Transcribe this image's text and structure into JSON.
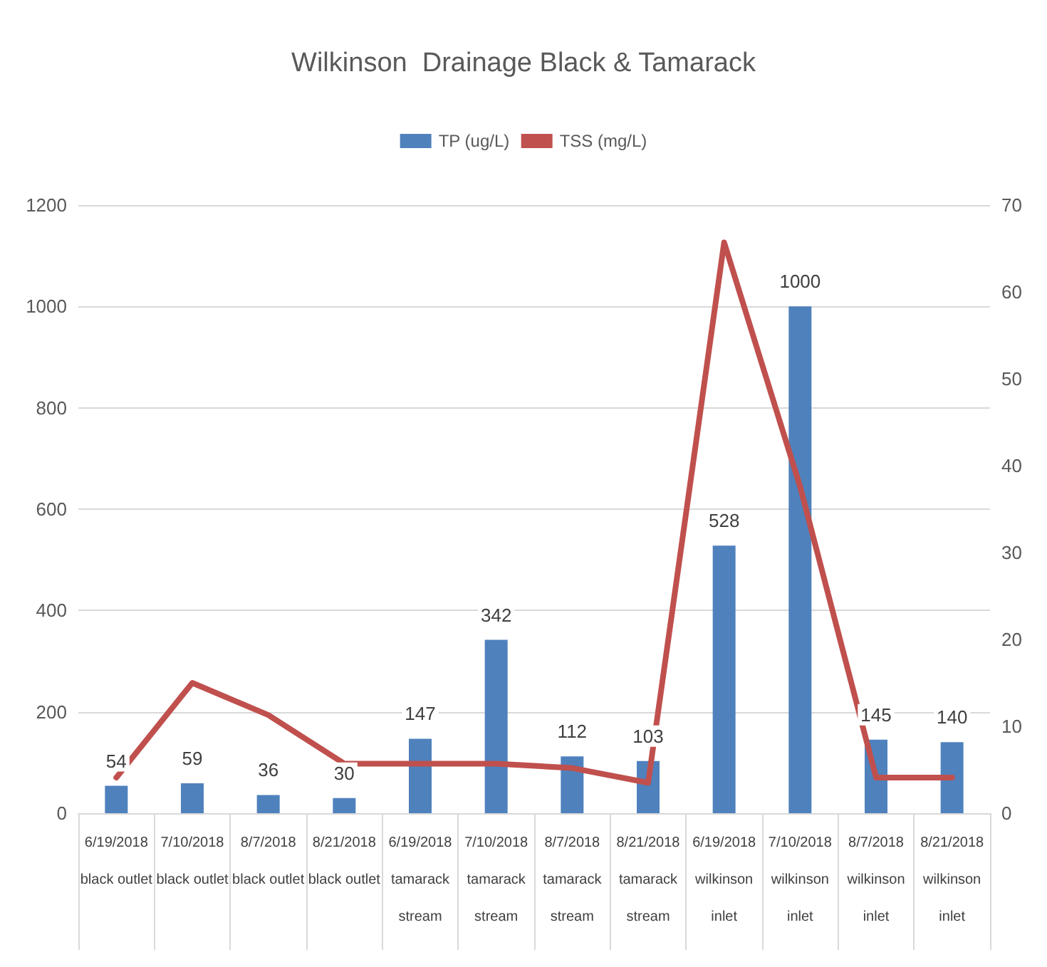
{
  "chart_data": {
    "type": "bar",
    "title": "Wilkinson  Drainage Black & Tamarack",
    "categories": [
      "6/19/2018\nblack outlet",
      "7/10/2018\nblack outlet",
      "8/7/2018\nblack outlet",
      "8/21/2018\nblack outlet",
      "6/19/2018\ntamarack\nstream",
      "7/10/2018\ntamarack\nstream",
      "8/7/2018\ntamarack\nstream",
      "8/21/2018\ntamarack\nstream",
      "6/19/2018\nwilkinson\ninlet",
      "7/10/2018\nwilkinson\ninlet",
      "8/7/2018\nwilkinson\ninlet",
      "8/21/2018\nwilkinson\ninlet"
    ],
    "series": [
      {
        "name": "TP (ug/L)",
        "color": "#4f81bd",
        "values": [
          54,
          59,
          36,
          30,
          147,
          342,
          112,
          103,
          528,
          1000,
          145,
          140
        ],
        "value_labels": [
          "54",
          "59",
          "36",
          "30",
          "147",
          "342",
          "112",
          "103",
          "528",
          "1000",
          "145",
          "140"
        ]
      },
      {
        "name": "TSS (mg/L)",
        "type": "line",
        "axis": "y2",
        "color": "#c0504d",
        "values": [
          4.1,
          15,
          11.3,
          5.7,
          5.7,
          5.7,
          5.2,
          3.5,
          65.7,
          37.6,
          4.1,
          4.1
        ]
      }
    ],
    "ylim": [
      0,
      1200
    ],
    "yticks": [
      0,
      200,
      400,
      600,
      800,
      1000,
      1200
    ],
    "y2lim": [
      0,
      70
    ],
    "y2ticks": [
      0,
      10,
      20,
      30,
      40,
      50,
      60,
      70
    ],
    "grid": "y",
    "legend": "top",
    "marker": "none",
    "line_style": "solid"
  }
}
